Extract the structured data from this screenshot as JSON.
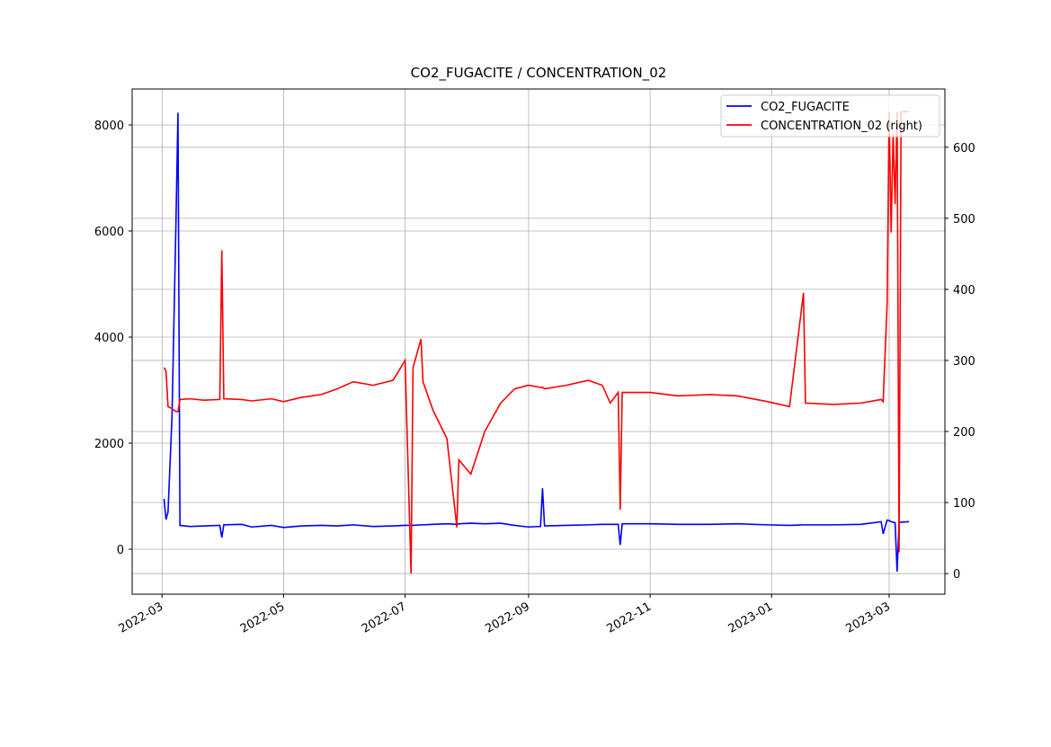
{
  "chart_data": {
    "type": "line",
    "title": "CO2_FUGACITE / CONCENTRATION_02",
    "x": [
      "2022-03-02",
      "2022-03-03",
      "2022-03-04",
      "2022-03-06",
      "2022-03-08",
      "2022-03-09",
      "2022-03-10",
      "2022-03-15",
      "2022-03-22",
      "2022-03-30",
      "2022-03-31",
      "2022-04-01",
      "2022-04-10",
      "2022-04-15",
      "2022-04-25",
      "2022-05-01",
      "2022-05-10",
      "2022-05-20",
      "2022-05-28",
      "2022-06-05",
      "2022-06-15",
      "2022-06-25",
      "2022-07-01",
      "2022-07-04",
      "2022-07-05",
      "2022-07-09",
      "2022-07-10",
      "2022-07-15",
      "2022-07-22",
      "2022-07-27",
      "2022-07-28",
      "2022-08-03",
      "2022-08-10",
      "2022-08-18",
      "2022-08-25",
      "2022-09-01",
      "2022-09-07",
      "2022-09-08",
      "2022-09-09",
      "2022-09-20",
      "2022-10-01",
      "2022-10-08",
      "2022-10-12",
      "2022-10-16",
      "2022-10-17",
      "2022-10-18",
      "2022-11-01",
      "2022-11-15",
      "2022-12-01",
      "2022-12-15",
      "2022-12-30",
      "2023-01-10",
      "2023-01-17",
      "2023-01-18",
      "2023-02-01",
      "2023-02-15",
      "2023-02-25",
      "2023-02-26",
      "2023-02-28",
      "2023-03-01",
      "2023-03-02",
      "2023-03-03",
      "2023-03-04",
      "2023-03-05",
      "2023-03-06",
      "2023-03-07",
      "2023-03-11"
    ],
    "series": [
      {
        "name": "CO2_FUGACITE",
        "color": "#0000ff",
        "axis": "y",
        "values": [
          950,
          560,
          700,
          2500,
          6200,
          8230,
          450,
          430,
          440,
          450,
          220,
          460,
          470,
          420,
          450,
          410,
          440,
          450,
          440,
          460,
          430,
          440,
          450,
          450,
          450,
          460,
          460,
          470,
          480,
          470,
          480,
          490,
          480,
          490,
          450,
          420,
          430,
          1150,
          440,
          450,
          460,
          470,
          470,
          470,
          80,
          480,
          480,
          470,
          470,
          480,
          460,
          450,
          460,
          460,
          460,
          470,
          520,
          290,
          550,
          540,
          520,
          510,
          500,
          -420,
          500,
          510,
          520
        ]
      },
      {
        "name": "CONCENTRATION_02 (right)",
        "color": "#ff0000",
        "axis": "y2",
        "values": [
          290,
          285,
          235,
          232,
          228,
          228,
          245,
          246,
          244,
          245,
          455,
          246,
          245,
          243,
          246,
          242,
          248,
          252,
          260,
          270,
          265,
          272,
          300,
          0,
          290,
          330,
          270,
          230,
          190,
          65,
          160,
          140,
          200,
          240,
          260,
          265,
          262,
          262,
          260,
          265,
          272,
          265,
          240,
          255,
          90,
          255,
          255,
          250,
          252,
          250,
          242,
          235,
          395,
          240,
          238,
          240,
          245,
          242,
          380,
          650,
          480,
          620,
          520,
          650,
          30,
          650,
          650
        ]
      }
    ],
    "xlim": [
      "2022-02-14",
      "2023-03-29"
    ],
    "xticks": [
      {
        "value": "2022-03-01",
        "label": "2022-03"
      },
      {
        "value": "2022-05-01",
        "label": "2022-05"
      },
      {
        "value": "2022-07-01",
        "label": "2022-07"
      },
      {
        "value": "2022-09-01",
        "label": "2022-09"
      },
      {
        "value": "2022-11-01",
        "label": "2022-11"
      },
      {
        "value": "2023-01-01",
        "label": "2023-01"
      },
      {
        "value": "2023-03-01",
        "label": "2023-03"
      }
    ],
    "ylim": [
      -847,
      8678
    ],
    "yticks": [
      0,
      2000,
      4000,
      6000,
      8000
    ],
    "y2lim": [
      -29,
      682
    ],
    "y2ticks": [
      0,
      100,
      200,
      300,
      400,
      500,
      600
    ],
    "grid": true,
    "legend": "upper right"
  }
}
